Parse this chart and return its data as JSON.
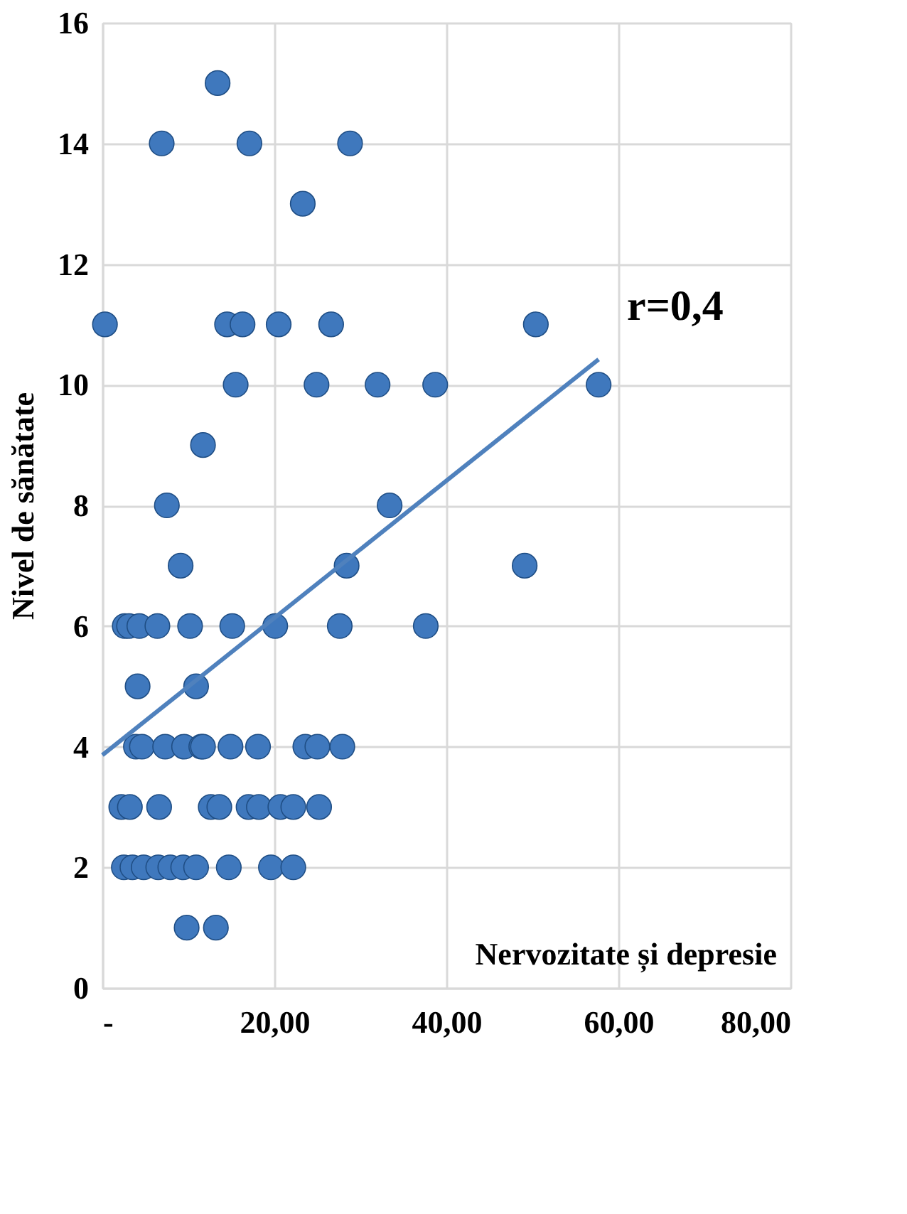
{
  "chart_data": {
    "type": "scatter",
    "xlabel": "Nervozitate și depresie",
    "ylabel": "Nivel de sănătate",
    "annotations": [
      "r=0,4"
    ],
    "xlim": [
      0,
      80
    ],
    "xticks": [
      {
        "value": 0,
        "label": "-"
      },
      {
        "value": 20,
        "label": "20,00"
      },
      {
        "value": 40,
        "label": "40,00"
      },
      {
        "value": 60,
        "label": "60,00"
      },
      {
        "value": 80,
        "label": "80,00"
      }
    ],
    "ylim": [
      0,
      16
    ],
    "yticks": [
      0,
      2,
      4,
      6,
      8,
      10,
      12,
      14,
      16
    ],
    "grid": true,
    "marker": "circle",
    "series": [
      {
        "color": "#3f78bd",
        "x": [
          13.4,
          6.9,
          17.1,
          28.8,
          23.3,
          0.3,
          14.5,
          16.3,
          20.5,
          26.6,
          50.4,
          15.5,
          24.9,
          32,
          38.7,
          57.7,
          11.7,
          7.5,
          33.4,
          9.1,
          28.4,
          49.1,
          2.6,
          3.1,
          4.3,
          6.4,
          10.2,
          15.1,
          20.1,
          27.6,
          37.6,
          4.1,
          10.9,
          3.9,
          4.6,
          7.3,
          9.5,
          11.5,
          11.7,
          14.9,
          18.1,
          23.6,
          25,
          27.9,
          2.2,
          3.2,
          6.6,
          12.6,
          13.6,
          17,
          18.2,
          20.7,
          22.2,
          25.2,
          2.5,
          3.5,
          4.8,
          6.5,
          7.9,
          9.4,
          10.9,
          14.7,
          19.6,
          22.2,
          9.8,
          13.2
        ],
        "values": [
          15,
          14,
          14,
          14,
          13,
          11,
          11,
          11,
          11,
          11,
          11,
          10,
          10,
          10,
          10,
          10,
          9,
          8,
          8,
          7,
          7,
          7,
          6,
          6,
          6,
          6,
          6,
          6,
          6,
          6,
          6,
          5,
          5,
          4,
          4,
          4,
          4,
          4,
          4,
          4,
          4,
          4,
          4,
          4,
          3,
          3,
          3,
          3,
          3,
          3,
          3,
          3,
          3,
          3,
          2,
          2,
          2,
          2,
          2,
          2,
          2,
          2,
          2,
          2,
          1,
          1
        ]
      },
      {
        "type": "line",
        "color": "#4f81bd",
        "line_style": "solid",
        "marker": "none",
        "x": [
          0,
          57.7
        ],
        "values": [
          3.86,
          10.42
        ]
      }
    ]
  }
}
